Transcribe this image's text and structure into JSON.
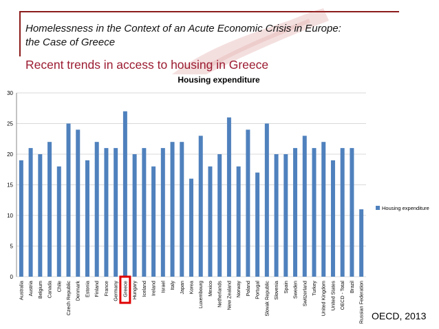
{
  "slide": {
    "title_line1": "Homelessness in the Context of an Acute Economic Crisis in Europe:",
    "title_line2": "the Case of Greece",
    "subtitle": "Recent trends in access to housing in Greece",
    "source": "OECD, 2013"
  },
  "colors": {
    "bar": "#4f81bd",
    "accent_red": "#9b1b30",
    "frame_red": "#8b1a1a",
    "highlight_box": "#e00000",
    "gridline": "#d9d9d9"
  },
  "chart_data": {
    "type": "bar",
    "title": "Housing expenditure",
    "xlabel": "",
    "ylabel": "",
    "ylim": [
      0,
      30
    ],
    "yticks": [
      0,
      5,
      10,
      15,
      20,
      25,
      30
    ],
    "grid": true,
    "legend_position": "right",
    "highlighted_category": "Greece",
    "categories": [
      "Australia",
      "Austria",
      "Belgium",
      "Canada",
      "Chile",
      "Czech Republic",
      "Denmark",
      "Estonia",
      "Finland",
      "France",
      "Germany",
      "Greece",
      "Hungary",
      "Iceland",
      "Ireland",
      "Israel",
      "Italy",
      "Japan",
      "Korea",
      "Luxembourg",
      "Mexico",
      "Netherlands",
      "New Zealand",
      "Norway",
      "Poland",
      "Portugal",
      "Slovak Republic",
      "Slovenia",
      "Spain",
      "Sweden",
      "Switzerland",
      "Turkey",
      "United Kingdom",
      "United States",
      "OECD - Total",
      "Brazil",
      "Russian Federation"
    ],
    "series": [
      {
        "name": "Housing expenditure",
        "values": [
          19,
          21,
          20,
          22,
          18,
          25,
          24,
          19,
          22,
          21,
          21,
          27,
          20,
          21,
          18,
          21,
          22,
          22,
          16,
          23,
          18,
          20,
          26,
          18,
          24,
          17,
          25,
          20,
          20,
          21,
          23,
          21,
          22,
          19,
          21,
          21,
          11
        ]
      }
    ]
  }
}
